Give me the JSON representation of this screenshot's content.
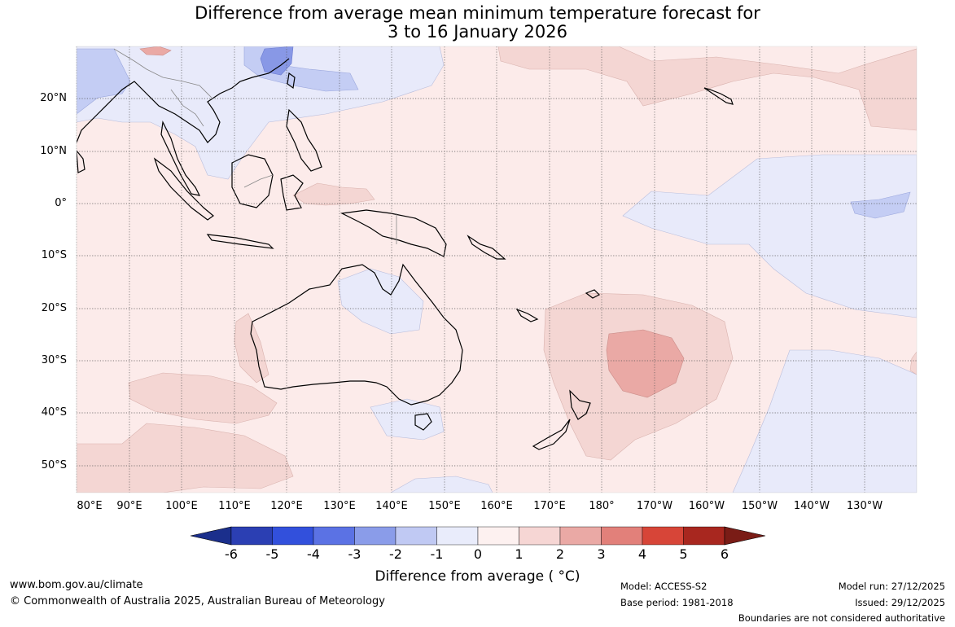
{
  "title": {
    "line1": "Difference from average mean minimum temperature forecast for",
    "line2": "3 to 16 January 2026"
  },
  "map": {
    "lat_labels": [
      "20°N",
      "10°N",
      "0°",
      "10°S",
      "20°S",
      "30°S",
      "40°S",
      "50°S"
    ],
    "lon_labels": [
      "80°E",
      "90°E",
      "100°E",
      "110°E",
      "120°E",
      "130°E",
      "140°E",
      "150°E",
      "160°E",
      "170°E",
      "180°",
      "170°W",
      "160°W",
      "150°W",
      "140°W",
      "130°W"
    ],
    "grid": "dotted",
    "colors": {
      "neutral_warm": "#fcebea",
      "warm_1": "#f4d6d3",
      "warm_2": "#eaa9a5",
      "cool_1": "#e8eafa",
      "cool_2": "#c4cdf4",
      "cool_3": "#8898e6",
      "coastline": "#000000"
    }
  },
  "colorbar": {
    "ticks": [
      "-6",
      "-5",
      "-4",
      "-3",
      "-2",
      "-1",
      "0",
      "1",
      "2",
      "3",
      "4",
      "5",
      "6"
    ],
    "colors": [
      "#1b2f8c",
      "#2b3fb3",
      "#3250dc",
      "#5b72e4",
      "#8a9ce9",
      "#c0c9f3",
      "#e9ecfb",
      "#fdf1f0",
      "#f6d6d4",
      "#eaa9a5",
      "#e2807a",
      "#d74538",
      "#a8271f",
      "#7a1c16"
    ],
    "label": "Difference from average ( °C)"
  },
  "footer": {
    "url": "www.bom.gov.au/climate",
    "copyright": "© Commonwealth of Australia 2025, Australian Bureau of Meteorology",
    "model": "Model: ACCESS-S2",
    "base_period": "Base period: 1981-2018",
    "model_run": "Model run: 27/12/2025",
    "issued": "Issued: 29/12/2025",
    "disclaimer": "Boundaries are not considered authoritative"
  }
}
